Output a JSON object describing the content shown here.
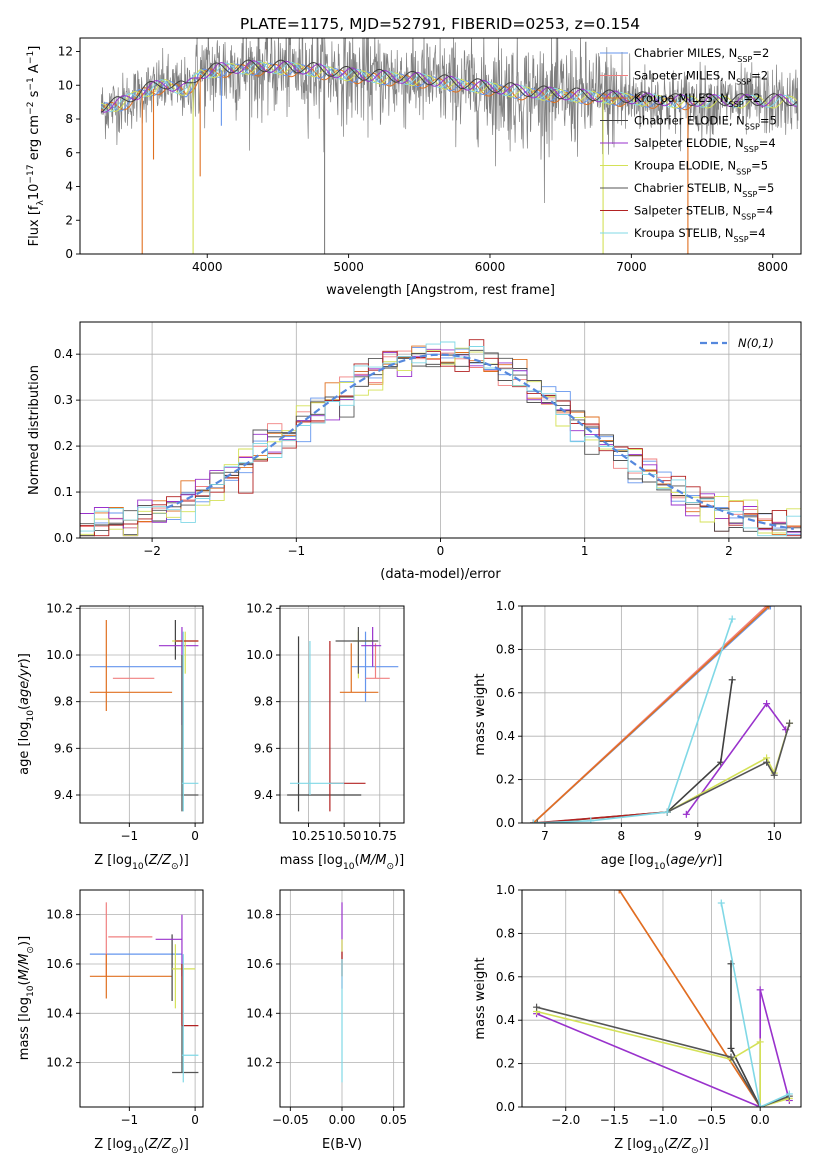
{
  "title": "PLATE=1175, MJD=52791, FIBERID=0253, z=0.154",
  "colors": {
    "chabrier_miles": "#6495ED",
    "salpeter_miles": "#F08080",
    "kroupa_miles": "#E07020",
    "chabrier_elodie": "#404040",
    "salpeter_elodie": "#9932CC",
    "kroupa_elodie": "#D4E157",
    "chabrier_stelib": "#555555",
    "salpeter_stelib": "#B22222",
    "kroupa_stelib": "#80D8E6",
    "data": "#808080"
  },
  "chart_data": [
    {
      "id": "spectrum",
      "type": "line",
      "xlabel": "wavelength [Angstrom, rest frame]",
      "ylabel": "Flux [f",
      "xlim": [
        3100,
        8200
      ],
      "ylim": [
        0,
        12.8
      ],
      "xticks": [
        4000,
        5000,
        6000,
        7000,
        8000
      ],
      "yticks": [
        0,
        2,
        4,
        6,
        8,
        10,
        12
      ],
      "grid": false,
      "legend_position": "right",
      "legend": [
        {
          "name": "Chabrier MILES, N",
          "n": "2",
          "color_key": "chabrier_miles"
        },
        {
          "name": "Salpeter MILES, N",
          "n": "2",
          "color_key": "salpeter_miles"
        },
        {
          "name": "Kroupa MILES, N",
          "n": "2",
          "color_key": "kroupa_miles"
        },
        {
          "name": "Chabrier ELODIE, N",
          "n": "5",
          "color_key": "chabrier_elodie"
        },
        {
          "name": "Salpeter ELODIE, N",
          "n": "4",
          "color_key": "salpeter_elodie"
        },
        {
          "name": "Kroupa ELODIE, N",
          "n": "5",
          "color_key": "kroupa_elodie"
        },
        {
          "name": "Chabrier STELIB, N",
          "n": "5",
          "color_key": "chabrier_stelib"
        },
        {
          "name": "Salpeter STELIB, N",
          "n": "4",
          "color_key": "salpeter_stelib"
        },
        {
          "name": "Kroupa STELIB, N",
          "n": "4",
          "color_key": "kroupa_stelib"
        }
      ],
      "model_continuum": {
        "x": [
          3250,
          3400,
          3550,
          3700,
          3850,
          3950,
          4100,
          4300,
          4500,
          4700,
          4900,
          5100,
          5300,
          5500,
          5700,
          5900,
          6100,
          6300,
          6500,
          6700,
          6900,
          7100,
          7300,
          7450
        ],
        "y": [
          8.6,
          8.9,
          9.6,
          10.0,
          9.7,
          10.6,
          10.9,
          11.0,
          11.0,
          10.9,
          10.7,
          10.5,
          10.4,
          10.3,
          10.1,
          9.9,
          9.7,
          9.5,
          9.4,
          9.3,
          9.2,
          9.1,
          9.0,
          9.0
        ]
      },
      "spikes": [
        {
          "x": 3540,
          "ymin": 0.0,
          "color_key": "kroupa_miles"
        },
        {
          "x": 3620,
          "ymin": 5.6,
          "color_key": "kroupa_miles"
        },
        {
          "x": 3900,
          "ymin": 0.0,
          "color_key": "kroupa_elodie"
        },
        {
          "x": 3950,
          "ymin": 4.6,
          "color_key": "kroupa_miles"
        },
        {
          "x": 4100,
          "ymin": 7.6,
          "color_key": "chabrier_miles"
        },
        {
          "x": 4830,
          "ymin": 0.0,
          "color_key": "data"
        },
        {
          "x": 6800,
          "ymin": 0.0,
          "color_key": "kroupa_elodie"
        },
        {
          "x": 7400,
          "ymin": 0.0,
          "color_key": "kroupa_miles"
        }
      ]
    },
    {
      "id": "residuals",
      "type": "line",
      "xlabel": "(data-model)/error",
      "ylabel": "Normed distribution",
      "xlim": [
        -2.5,
        2.5
      ],
      "ylim": [
        0,
        0.47
      ],
      "xticks": [
        -2,
        -1,
        0,
        1,
        2
      ],
      "yticks": [
        0.0,
        0.1,
        0.2,
        0.3,
        0.4
      ],
      "grid": true,
      "legend_position": "top-right",
      "legend": [
        {
          "name": "N(0,1)",
          "color_key": "chabrier_miles"
        }
      ],
      "bin_width": 0.1
    },
    {
      "id": "age_vs_z",
      "type": "scatter",
      "xlabel": "Z [log",
      "ylabel": "age  [log",
      "xlim": [
        -1.75,
        0.12
      ],
      "ylim": [
        9.28,
        10.21
      ],
      "xticks": [
        -1,
        0
      ],
      "yticks": [
        9.4,
        9.6,
        9.8,
        10.0,
        10.2
      ],
      "grid": true,
      "errorbars": [
        {
          "x": -0.95,
          "xlo": -1.6,
          "xhi": -0.2,
          "y": 9.95,
          "ylo": 9.95,
          "yhi": 9.95,
          "color_key": "chabrier_miles"
        },
        {
          "x": -0.95,
          "xlo": -1.25,
          "xhi": -0.62,
          "y": 9.9,
          "ylo": 9.9,
          "yhi": 9.9,
          "color_key": "salpeter_miles"
        },
        {
          "x": -1.35,
          "xlo": -1.6,
          "xhi": -0.35,
          "y": 9.84,
          "ylo": 9.76,
          "yhi": 10.15,
          "color_key": "kroupa_miles"
        },
        {
          "x": -0.3,
          "xlo": -0.3,
          "xhi": -0.3,
          "y": 10.05,
          "ylo": 9.98,
          "yhi": 10.15,
          "color_key": "chabrier_elodie"
        },
        {
          "x": -0.2,
          "xlo": -0.55,
          "xhi": 0.05,
          "y": 10.04,
          "ylo": 9.7,
          "yhi": 10.12,
          "color_key": "salpeter_elodie"
        },
        {
          "x": -0.15,
          "xlo": -0.35,
          "xhi": 0.05,
          "y": 10.06,
          "ylo": 9.92,
          "yhi": 10.1,
          "color_key": "kroupa_elodie"
        },
        {
          "x": -0.2,
          "xlo": -0.2,
          "xhi": 0.05,
          "y": 9.4,
          "ylo": 9.33,
          "yhi": 10.0,
          "color_key": "chabrier_stelib"
        },
        {
          "x": -0.2,
          "xlo": -0.3,
          "xhi": 0.05,
          "y": 10.06,
          "ylo": 10.06,
          "yhi": 10.06,
          "color_key": "salpeter_stelib"
        },
        {
          "x": -0.18,
          "xlo": -0.2,
          "xhi": 0.05,
          "y": 9.45,
          "ylo": 9.33,
          "yhi": 10.1,
          "color_key": "kroupa_stelib"
        }
      ]
    },
    {
      "id": "age_vs_mass",
      "type": "scatter",
      "xlabel": "mass [log",
      "ylabel": "",
      "xlim": [
        10.05,
        10.92
      ],
      "ylim": [
        9.28,
        10.21
      ],
      "xticks": [
        10.25,
        10.5,
        10.75
      ],
      "yticks": [
        9.4,
        9.6,
        9.8,
        10.0,
        10.2
      ],
      "grid": true,
      "errorbars": [
        {
          "x": 10.65,
          "xlo": 10.55,
          "xhi": 10.88,
          "y": 9.95,
          "ylo": 9.8,
          "yhi": 10.1,
          "color_key": "chabrier_miles"
        },
        {
          "x": 10.72,
          "xlo": 10.65,
          "xhi": 10.82,
          "y": 9.9,
          "ylo": 9.9,
          "yhi": 10.05,
          "color_key": "salpeter_miles"
        },
        {
          "x": 10.55,
          "xlo": 10.47,
          "xhi": 10.74,
          "y": 9.84,
          "ylo": 9.84,
          "yhi": 10.05,
          "color_key": "kroupa_miles"
        },
        {
          "x": 10.18,
          "xlo": 10.1,
          "xhi": 10.62,
          "y": 9.4,
          "ylo": 9.33,
          "yhi": 10.08,
          "color_key": "chabrier_elodie"
        },
        {
          "x": 10.7,
          "xlo": 10.62,
          "xhi": 10.76,
          "y": 10.04,
          "ylo": 9.95,
          "yhi": 10.12,
          "color_key": "salpeter_elodie"
        },
        {
          "x": 10.6,
          "xlo": 10.56,
          "xhi": 10.7,
          "y": 10.06,
          "ylo": 9.9,
          "yhi": 10.1,
          "color_key": "kroupa_elodie"
        },
        {
          "x": 10.6,
          "xlo": 10.44,
          "xhi": 10.74,
          "y": 10.06,
          "ylo": 9.92,
          "yhi": 10.12,
          "color_key": "chabrier_stelib"
        },
        {
          "x": 10.4,
          "xlo": 10.4,
          "xhi": 10.65,
          "y": 9.45,
          "ylo": 9.33,
          "yhi": 10.06,
          "color_key": "salpeter_stelib"
        },
        {
          "x": 10.26,
          "xlo": 10.12,
          "xhi": 10.5,
          "y": 9.45,
          "ylo": 9.4,
          "yhi": 10.06,
          "color_key": "kroupa_stelib"
        }
      ]
    },
    {
      "id": "weight_vs_age",
      "type": "line",
      "xlabel": "age  [log",
      "ylabel": "mass weight",
      "xlim": [
        6.7,
        10.35
      ],
      "ylim": [
        0,
        1.0
      ],
      "xticks": [
        7,
        8,
        9,
        10
      ],
      "yticks": [
        0.0,
        0.2,
        0.4,
        0.6,
        0.8,
        1.0
      ],
      "grid": true,
      "series": [
        {
          "color_key": "chabrier_miles",
          "x": [
            6.85,
            9.95
          ],
          "y": [
            0.0,
            1.0
          ]
        },
        {
          "color_key": "salpeter_miles",
          "x": [
            6.85,
            9.9
          ],
          "y": [
            0.0,
            1.0
          ]
        },
        {
          "color_key": "kroupa_miles",
          "x": [
            6.85,
            9.93
          ],
          "y": [
            0.0,
            1.0
          ]
        },
        {
          "color_key": "chabrier_elodie",
          "x": [
            8.6,
            9.3,
            9.45
          ],
          "y": [
            0.05,
            0.28,
            0.66
          ]
        },
        {
          "color_key": "salpeter_elodie",
          "x": [
            8.85,
            9.9,
            10.15
          ],
          "y": [
            0.04,
            0.55,
            0.43
          ]
        },
        {
          "color_key": "kroupa_elodie",
          "x": [
            6.9,
            8.6,
            9.9,
            10.0,
            10.2
          ],
          "y": [
            0.0,
            0.05,
            0.3,
            0.23,
            0.46
          ]
        },
        {
          "color_key": "chabrier_stelib",
          "x": [
            6.9,
            8.6,
            9.9,
            10.0,
            10.2
          ],
          "y": [
            0.0,
            0.05,
            0.28,
            0.22,
            0.46
          ]
        },
        {
          "color_key": "salpeter_stelib",
          "x": [
            6.85,
            8.6
          ],
          "y": [
            0.0,
            0.05
          ]
        },
        {
          "color_key": "kroupa_stelib",
          "x": [
            6.85,
            7.6,
            8.6,
            9.45
          ],
          "y": [
            0.0,
            0.01,
            0.05,
            0.94
          ]
        }
      ]
    },
    {
      "id": "mass_vs_z",
      "type": "scatter",
      "xlabel": "Z [log",
      "ylabel": "mass [log",
      "xlim": [
        -1.75,
        0.12
      ],
      "ylim": [
        10.02,
        10.9
      ],
      "xticks": [
        -1,
        0
      ],
      "yticks": [
        10.2,
        10.4,
        10.6,
        10.8
      ],
      "grid": true,
      "errorbars": [
        {
          "x": -0.95,
          "xlo": -1.6,
          "xhi": -0.2,
          "y": 10.64,
          "ylo": 10.64,
          "yhi": 10.64,
          "color_key": "chabrier_miles"
        },
        {
          "x": -1.35,
          "xlo": -1.32,
          "xhi": -0.65,
          "y": 10.71,
          "ylo": 10.55,
          "yhi": 10.85,
          "color_key": "salpeter_miles"
        },
        {
          "x": -1.35,
          "xlo": -1.6,
          "xhi": -0.35,
          "y": 10.55,
          "ylo": 10.46,
          "yhi": 10.64,
          "color_key": "kroupa_miles"
        },
        {
          "x": -0.35,
          "xlo": -0.35,
          "xhi": -0.35,
          "y": 10.6,
          "ylo": 10.45,
          "yhi": 10.72,
          "color_key": "chabrier_elodie"
        },
        {
          "x": -0.2,
          "xlo": -0.6,
          "xhi": -0.2,
          "y": 10.7,
          "ylo": 10.55,
          "yhi": 10.8,
          "color_key": "salpeter_elodie"
        },
        {
          "x": -0.3,
          "xlo": -0.35,
          "xhi": 0.0,
          "y": 10.58,
          "ylo": 10.42,
          "yhi": 10.68,
          "color_key": "kroupa_elodie"
        },
        {
          "x": -0.2,
          "xlo": -0.35,
          "xhi": 0.05,
          "y": 10.16,
          "ylo": 10.16,
          "yhi": 10.6,
          "color_key": "chabrier_stelib"
        },
        {
          "x": -0.2,
          "xlo": -0.2,
          "xhi": 0.05,
          "y": 10.35,
          "ylo": 10.35,
          "yhi": 10.6,
          "color_key": "salpeter_stelib"
        },
        {
          "x": -0.18,
          "xlo": -0.2,
          "xhi": 0.05,
          "y": 10.23,
          "ylo": 10.12,
          "yhi": 10.64,
          "color_key": "kroupa_stelib"
        }
      ]
    },
    {
      "id": "mass_vs_ebv",
      "type": "scatter",
      "xlabel": "E(B-V)",
      "ylabel": "",
      "xlim": [
        -0.06,
        0.06
      ],
      "ylim": [
        10.02,
        10.9
      ],
      "xticks": [
        -0.05,
        0.0,
        0.05
      ],
      "xticklabels": [
        "−0.05",
        "0.00",
        "0.05"
      ],
      "yticks": [
        10.2,
        10.4,
        10.6,
        10.8
      ],
      "grid": true,
      "errorbars": [
        {
          "x": 0.0,
          "ylo": 10.5,
          "yhi": 10.85,
          "color_key": "salpeter_elodie"
        },
        {
          "x": 0.0,
          "ylo": 10.55,
          "yhi": 10.7,
          "color_key": "kroupa_elodie"
        },
        {
          "x": 0.0,
          "ylo": 10.55,
          "yhi": 10.65,
          "color_key": "salpeter_stelib"
        },
        {
          "x": 0.0,
          "ylo": 10.12,
          "yhi": 10.62,
          "color_key": "kroupa_stelib"
        }
      ]
    },
    {
      "id": "weight_vs_z",
      "type": "line",
      "xlabel": "Z [log",
      "ylabel": "mass weight",
      "xlim": [
        -2.45,
        0.42
      ],
      "ylim": [
        0,
        1.0
      ],
      "xticks": [
        -2.0,
        -1.5,
        -1.0,
        -0.5,
        0.0
      ],
      "xticklabels": [
        "−2.0",
        "−1.5",
        "−1.0",
        "−0.5",
        "0.0"
      ],
      "yticks": [
        0.0,
        0.2,
        0.4,
        0.6,
        0.8,
        1.0
      ],
      "grid": true,
      "series": [
        {
          "color_key": "salpeter_miles",
          "x": [
            -1.45,
            0.0
          ],
          "y": [
            1.0,
            0.0
          ]
        },
        {
          "color_key": "kroupa_miles",
          "x": [
            -1.45,
            0.0
          ],
          "y": [
            1.0,
            0.0
          ]
        },
        {
          "color_key": "chabrier_elodie",
          "x": [
            -0.3,
            -0.3,
            0.0
          ],
          "y": [
            0.66,
            0.27,
            0.0
          ]
        },
        {
          "color_key": "salpeter_elodie",
          "x": [
            -2.3,
            0.0,
            0.0,
            0.3
          ],
          "y": [
            0.43,
            0.0,
            0.54,
            0.03
          ]
        },
        {
          "color_key": "kroupa_elodie",
          "x": [
            -2.3,
            -0.3,
            0.0,
            0.0,
            0.3
          ],
          "y": [
            0.44,
            0.22,
            0.3,
            0.0,
            0.04
          ]
        },
        {
          "color_key": "chabrier_stelib",
          "x": [
            -2.3,
            -0.3,
            0.0,
            0.3
          ],
          "y": [
            0.46,
            0.23,
            0.0,
            0.05
          ]
        },
        {
          "color_key": "kroupa_stelib",
          "x": [
            -0.4,
            0.0,
            0.3
          ],
          "y": [
            0.94,
            0.0,
            0.06
          ]
        }
      ]
    }
  ]
}
